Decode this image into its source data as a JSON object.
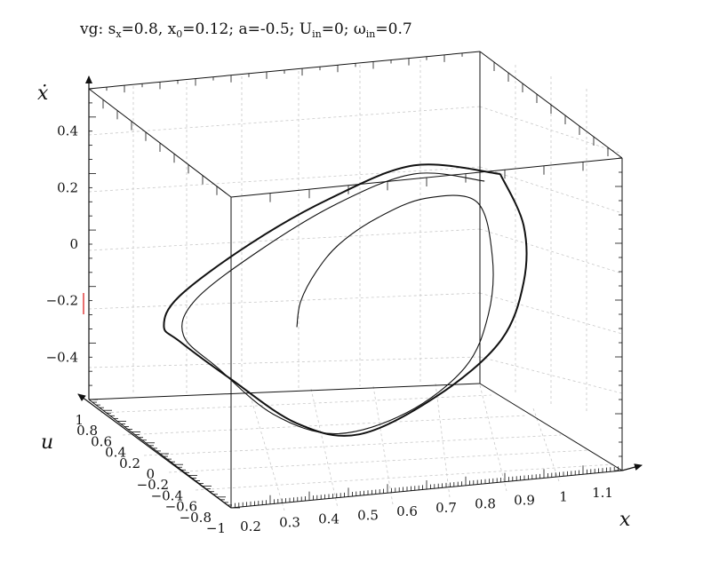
{
  "title": {
    "prefix": "vg: s",
    "sx_sub": "x",
    "sx_val": "=0.8, x",
    "x0_sub": "0",
    "x0_val": "=0.12; a=-0.5; U",
    "uin_sub": "in",
    "uin_val": "=0; ω",
    "win_sub": "in",
    "win_val": "=0.7"
  },
  "chart_data": {
    "type": "line",
    "projection": "3d",
    "title": "vg: sx=0.8, x0=0.12; a=-0.5; Uin=0; ωin=0.7",
    "axes": {
      "x": {
        "label": "x",
        "range": [
          0.15,
          1.15
        ],
        "ticks": [
          "0.2",
          "0.3",
          "0.4",
          "0.5",
          "0.6",
          "0.7",
          "0.8",
          "0.9",
          "1",
          "1.1"
        ],
        "values": [
          0.2,
          0.3,
          0.4,
          0.5,
          0.6,
          0.7,
          0.8,
          0.9,
          1.0,
          1.1
        ]
      },
      "u": {
        "label": "u",
        "range": [
          -1,
          1
        ],
        "ticks": [
          "−1",
          "−0.8",
          "−0.6",
          "−0.4",
          "−0.2",
          "0",
          "0.2",
          "0.4",
          "0.6",
          "0.8",
          "1"
        ],
        "values": [
          -1,
          -0.8,
          -0.6,
          -0.4,
          -0.2,
          0,
          0.2,
          0.4,
          0.6,
          0.8,
          1
        ]
      },
      "xdot": {
        "label": "ẋ",
        "range": [
          -0.55,
          0.55
        ],
        "ticks": [
          "−0.4",
          "−0.2",
          "0",
          "0.2",
          "0.4"
        ],
        "values": [
          -0.4,
          -0.2,
          0,
          0.2,
          0.4
        ]
      }
    },
    "grid": true,
    "series": [
      {
        "role": "trajectory (spiral from start to limit cycle)",
        "points": [
          {
            "x": 0.5,
            "xdot": -0.13
          },
          {
            "x": 0.51,
            "xdot": -0.04
          },
          {
            "x": 0.55,
            "xdot": 0.06
          },
          {
            "x": 0.61,
            "xdot": 0.15
          },
          {
            "x": 0.71,
            "xdot": 0.23
          },
          {
            "x": 0.83,
            "xdot": 0.28
          },
          {
            "x": 0.96,
            "xdot": 0.25
          },
          {
            "x": 1.0,
            "xdot": 0.05
          },
          {
            "x": 0.99,
            "xdot": -0.15
          },
          {
            "x": 0.93,
            "xdot": -0.33
          },
          {
            "x": 0.78,
            "xdot": -0.47
          },
          {
            "x": 0.6,
            "xdot": -0.52
          },
          {
            "x": 0.44,
            "xdot": -0.43
          },
          {
            "x": 0.3,
            "xdot": -0.25
          },
          {
            "x": 0.21,
            "xdot": -0.12
          },
          {
            "x": 0.24,
            "xdot": 0.0
          },
          {
            "x": 0.4,
            "xdot": 0.15
          },
          {
            "x": 0.6,
            "xdot": 0.29
          },
          {
            "x": 0.8,
            "xdot": 0.37
          },
          {
            "x": 0.98,
            "xdot": 0.32
          }
        ]
      },
      {
        "role": "limit cycle",
        "points": [
          {
            "x": 1.02,
            "xdot": 0.34
          },
          {
            "x": 1.08,
            "xdot": 0.15
          },
          {
            "x": 1.08,
            "xdot": -0.05
          },
          {
            "x": 1.02,
            "xdot": -0.25
          },
          {
            "x": 0.86,
            "xdot": -0.42
          },
          {
            "x": 0.66,
            "xdot": -0.53
          },
          {
            "x": 0.5,
            "xdot": -0.47
          },
          {
            "x": 0.33,
            "xdot": -0.29
          },
          {
            "x": 0.2,
            "xdot": -0.14
          },
          {
            "x": 0.16,
            "xdot": -0.08
          },
          {
            "x": 0.2,
            "xdot": 0.02
          },
          {
            "x": 0.38,
            "xdot": 0.18
          },
          {
            "x": 0.58,
            "xdot": 0.31
          },
          {
            "x": 0.8,
            "xdot": 0.4
          },
          {
            "x": 1.02,
            "xdot": 0.34
          }
        ]
      }
    ]
  }
}
